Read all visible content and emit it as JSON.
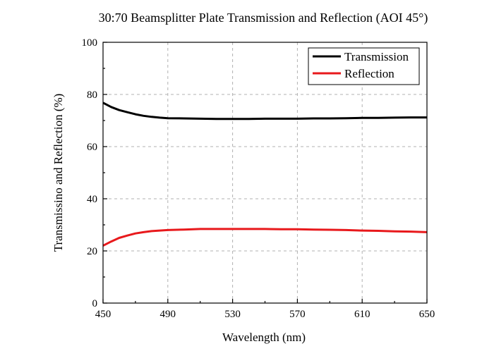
{
  "chart_data": {
    "type": "line",
    "title": "30:70 Beamsplitter Plate Transmission and Reflection (AOI 45°)",
    "xlabel": "Wavelength (nm)",
    "ylabel": "Transmissino and Reflection (%)",
    "xlim": [
      450,
      650
    ],
    "ylim": [
      0,
      100
    ],
    "xticks": [
      450,
      490,
      530,
      570,
      610,
      650
    ],
    "yticks": [
      0,
      20,
      40,
      60,
      80,
      100
    ],
    "grid": true,
    "legend_position": "top-right",
    "series": [
      {
        "name": "Transmission",
        "color": "#000000",
        "x": [
          450,
          455,
          460,
          465,
          470,
          475,
          480,
          485,
          490,
          500,
          510,
          520,
          530,
          540,
          550,
          560,
          570,
          580,
          590,
          600,
          610,
          620,
          630,
          640,
          650
        ],
        "y": [
          76.8,
          75.2,
          74.0,
          73.2,
          72.4,
          71.8,
          71.4,
          71.1,
          70.9,
          70.8,
          70.7,
          70.6,
          70.6,
          70.6,
          70.7,
          70.7,
          70.7,
          70.8,
          70.8,
          70.9,
          71.0,
          71.0,
          71.1,
          71.2,
          71.2
        ]
      },
      {
        "name": "Reflection",
        "color": "#e8191c",
        "x": [
          450,
          455,
          460,
          465,
          470,
          475,
          480,
          485,
          490,
          500,
          510,
          520,
          530,
          540,
          550,
          560,
          570,
          580,
          590,
          600,
          610,
          620,
          630,
          640,
          650
        ],
        "y": [
          22.0,
          23.6,
          25.0,
          25.9,
          26.7,
          27.2,
          27.6,
          27.8,
          28.0,
          28.2,
          28.4,
          28.4,
          28.4,
          28.4,
          28.4,
          28.3,
          28.3,
          28.2,
          28.1,
          28.0,
          27.8,
          27.7,
          27.5,
          27.4,
          27.2
        ]
      }
    ]
  }
}
